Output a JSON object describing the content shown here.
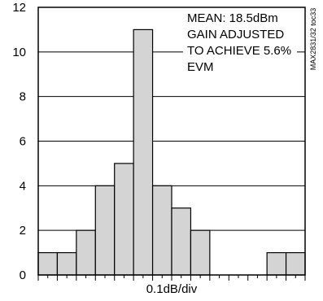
{
  "chart_data": {
    "type": "bar",
    "bins": 14,
    "total_divisions": 14,
    "values": [
      1,
      1,
      2,
      4,
      5,
      11,
      4,
      3,
      2,
      0,
      0,
      0,
      1,
      1
    ],
    "xlabel": "0.1dB/div",
    "ylabel": "",
    "ylim": [
      0,
      12
    ],
    "yticks": [
      0,
      2,
      4,
      6,
      8,
      10,
      12
    ],
    "grid": true,
    "bar_color": "#d4d4d4",
    "bar_edge_color": "#000000",
    "annotations": [
      "MEAN: 18.5dBm",
      "GAIN ADJUSTED",
      "TO ACHIEVE 5.6%",
      "EVM"
    ],
    "side_code": "MAX2831/32 toc33"
  }
}
